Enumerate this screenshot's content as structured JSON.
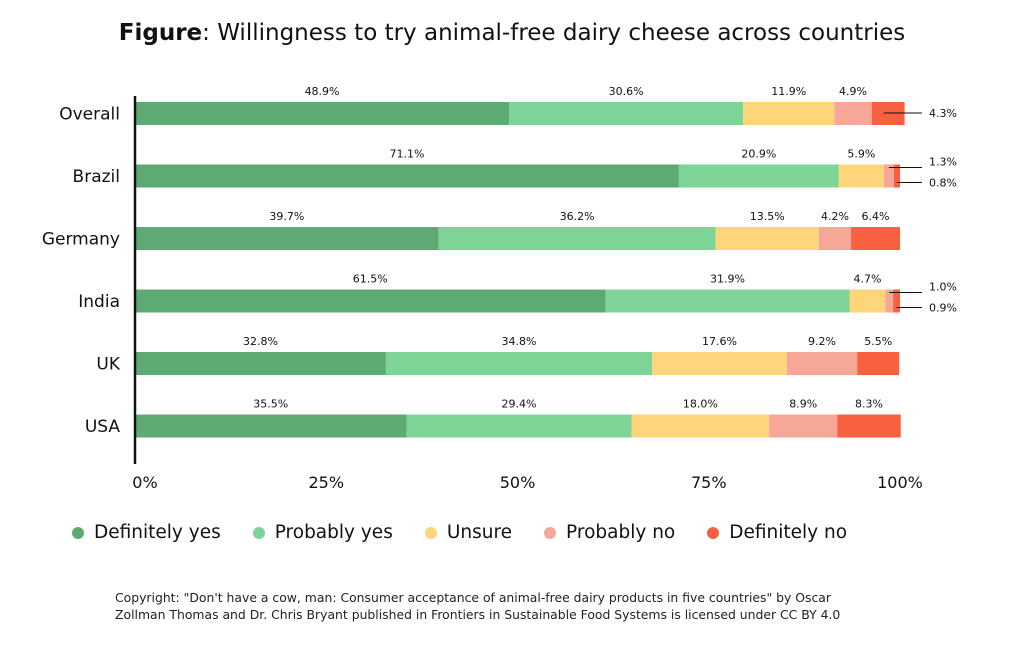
{
  "title": {
    "bold": "Figure",
    "rest": ": Willingness to try animal-free dairy cheese across countries"
  },
  "chart_data": {
    "type": "bar",
    "orientation": "horizontal",
    "stacked": true,
    "categories": [
      "Overall",
      "Brazil",
      "Germany",
      "India",
      "UK",
      "USA"
    ],
    "series": [
      {
        "name": "Definitely yes",
        "color": "#5daa74",
        "values": [
          48.9,
          71.1,
          39.7,
          61.5,
          32.8,
          35.5
        ]
      },
      {
        "name": "Probably yes",
        "color": "#7dd496",
        "values": [
          30.6,
          20.9,
          36.2,
          31.9,
          34.8,
          29.4
        ]
      },
      {
        "name": "Unsure",
        "color": "#fed57a",
        "values": [
          11.9,
          5.9,
          13.5,
          4.7,
          17.6,
          18.0
        ]
      },
      {
        "name": "Probably no",
        "color": "#f7a798",
        "values": [
          4.9,
          1.3,
          4.2,
          1.0,
          9.2,
          8.9
        ]
      },
      {
        "name": "Definitely no",
        "color": "#f76140",
        "values": [
          4.3,
          0.8,
          6.4,
          0.9,
          5.5,
          8.3
        ]
      }
    ],
    "x_ticks": [
      "0%",
      "25%",
      "50%",
      "75%",
      "100%"
    ],
    "xlim": [
      0,
      100
    ],
    "grid": false,
    "legend_position": "bottom"
  },
  "footnote": {
    "line1": "Copyright: \"Don't have a cow, man: Consumer acceptance of animal-free dairy products in five countries\" by Oscar",
    "line2": "Zollman Thomas and Dr. Chris Bryant published in Frontiers in Sustainable Food Systems is licensed under CC BY 4.0"
  }
}
